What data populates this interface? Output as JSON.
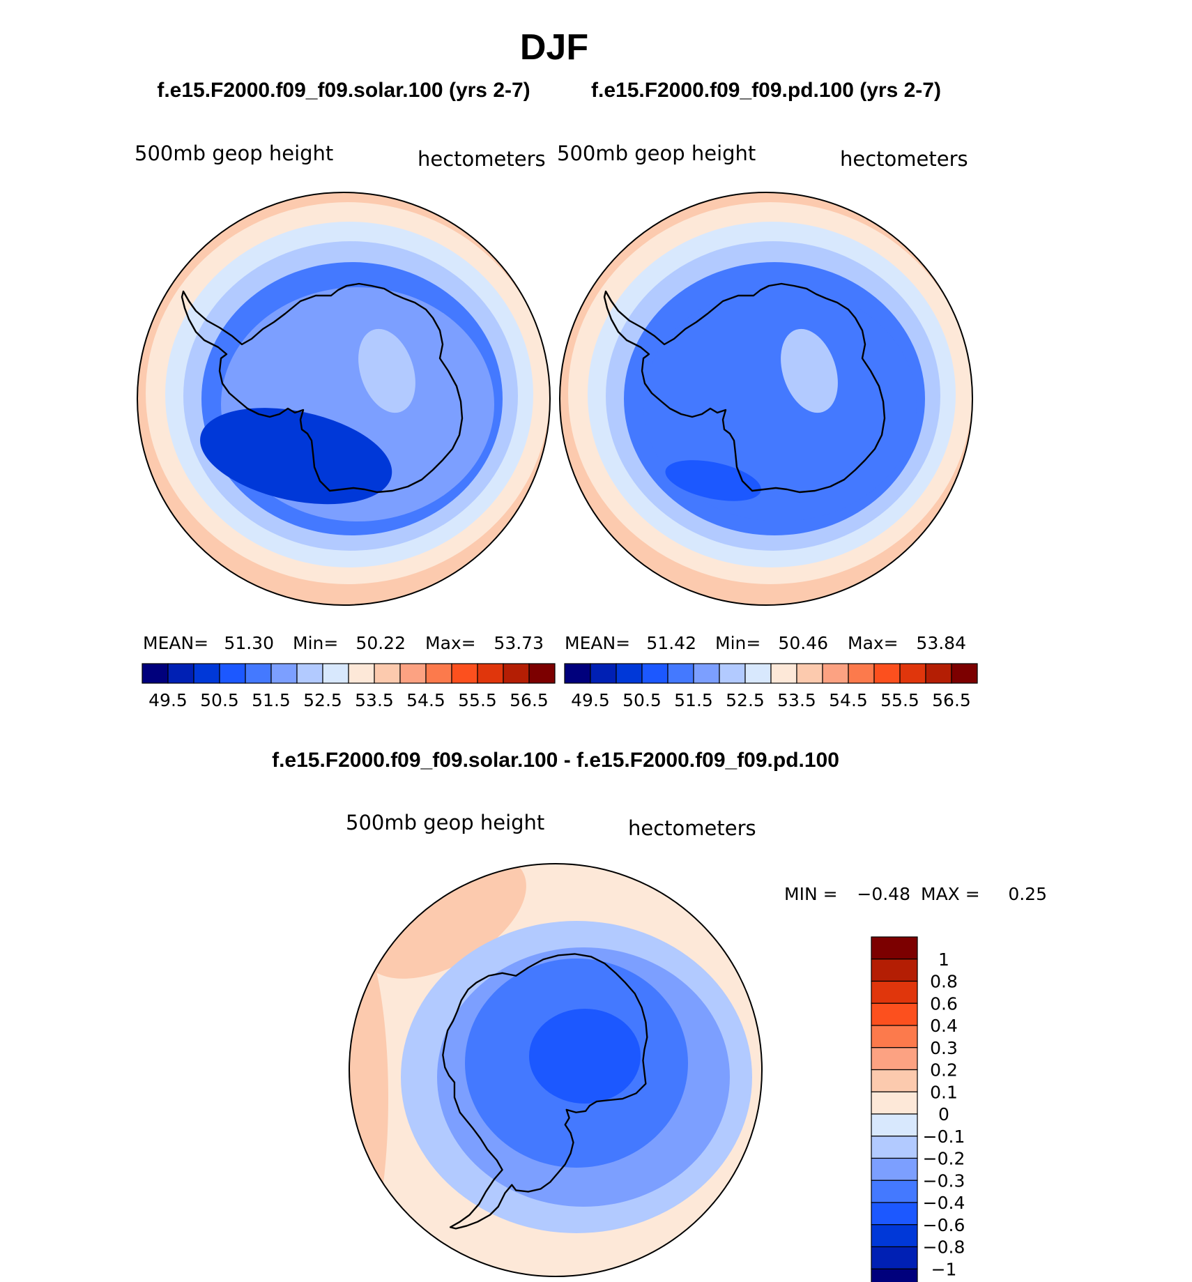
{
  "chart_data": {
    "type": "map",
    "title": "DJF",
    "panels": [
      {
        "id": "solar",
        "subtitle": "f.e15.F2000.f09_f09.solar.100 (yrs 2-7)",
        "variable": "500mb  geop  height",
        "units": "hectometers",
        "stats": {
          "mean_label": "MEAN=",
          "mean": "51.30",
          "min_label": "Min=",
          "min": "50.22",
          "max_label": "Max=",
          "max": "53.73"
        },
        "fields": {
          "pole": 51.75,
          "west_low": 50.25,
          "plateau": 52.25,
          "ring": [
            51.25,
            52.25,
            52.75,
            53.25,
            53.75
          ]
        }
      },
      {
        "id": "pd",
        "subtitle": "f.e15.F2000.f09_f09.pd.100 (yrs 2-7)",
        "variable": "500mb  geop  height",
        "units": "hectometers",
        "stats": {
          "mean_label": "MEAN=",
          "mean": "51.42",
          "min_label": "Min=",
          "min": "50.46",
          "max_label": "Max=",
          "max": "53.84"
        },
        "fields": {
          "pole": 51.25,
          "west_low": 50.75,
          "plateau": 52.25,
          "ring": [
            51.25,
            52.25,
            52.75,
            53.25,
            53.75
          ]
        }
      },
      {
        "id": "diff",
        "subtitle": "f.e15.F2000.f09_f09.solar.100 - f.e15.F2000.f09_f09.pd.100",
        "variable": "500mb  geop  height",
        "units": "hectometers",
        "stats": {
          "min_label": "MIN =",
          "min": "−0.48",
          "max_label": "MAX =",
          "max": "0.25"
        },
        "fields": {
          "bands": [
            0.15,
            0.05,
            -0.15,
            -0.25,
            -0.35,
            -0.5
          ],
          "min_value": -0.48,
          "max_value": 0.25
        }
      }
    ],
    "colorbar_main": {
      "tick_labels": [
        "49.5",
        "50.5",
        "51.5",
        "52.5",
        "53.5",
        "54.5",
        "55.5",
        "56.5"
      ],
      "levels": [
        49.5,
        50,
        50.5,
        51,
        51.5,
        52,
        52.5,
        53,
        53.5,
        54,
        54.5,
        55,
        55.5,
        56,
        56.5
      ],
      "colors": [
        "#00007c",
        "#0020b4",
        "#0038d8",
        "#1c58ff",
        "#4479ff",
        "#7c9fff",
        "#b2caff",
        "#d8e8fd",
        "#fde8d8",
        "#fccaae",
        "#fca282",
        "#fc7a4c",
        "#fc501e",
        "#e0360c",
        "#b41e04",
        "#7c0000"
      ]
    },
    "colorbar_diff": {
      "tick_labels": [
        "1",
        "0.8",
        "0.6",
        "0.4",
        "0.3",
        "0.2",
        "0.1",
        "0",
        "−0.1",
        "−0.2",
        "−0.3",
        "−0.4",
        "−0.6",
        "−0.8",
        "−1"
      ],
      "levels": [
        1,
        0.8,
        0.6,
        0.4,
        0.3,
        0.2,
        0.1,
        0,
        -0.1,
        -0.2,
        -0.3,
        -0.4,
        -0.6,
        -0.8,
        -1
      ],
      "colors": [
        "#7c0000",
        "#b41e04",
        "#e0360c",
        "#fc501e",
        "#fc7a4c",
        "#fca282",
        "#fccaae",
        "#fde8d8",
        "#d8e8fd",
        "#b2caff",
        "#7c9fff",
        "#4479ff",
        "#1c58ff",
        "#0038d8",
        "#0020b4",
        "#00007c"
      ]
    }
  }
}
